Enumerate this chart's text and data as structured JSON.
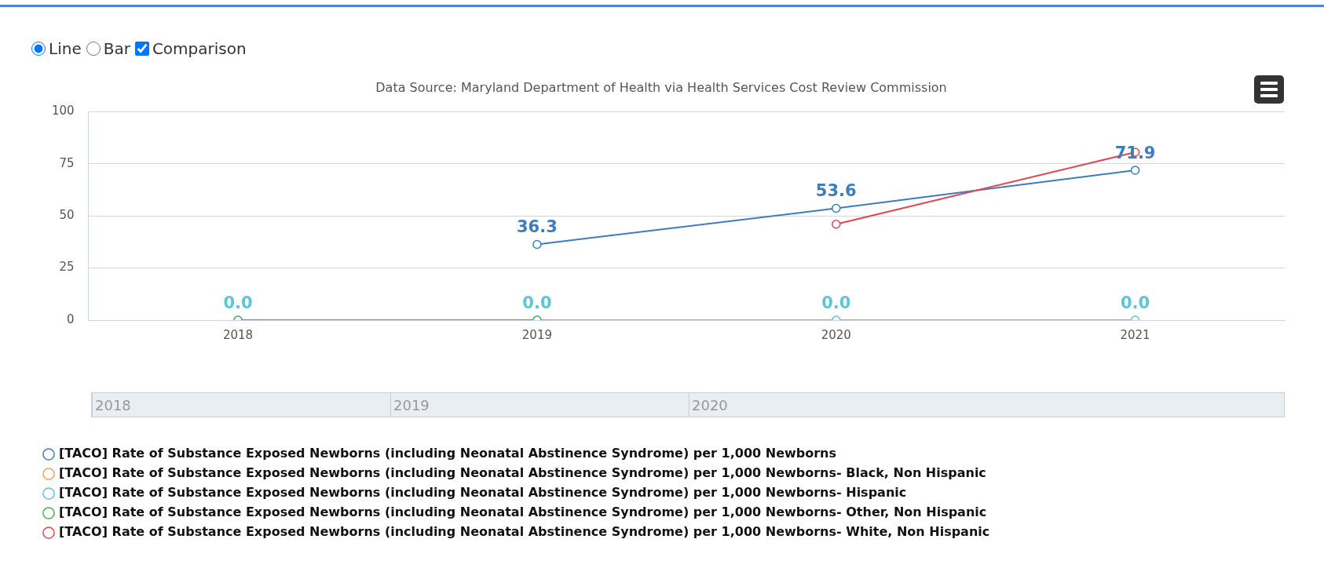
{
  "chart_data": {
    "type": "line",
    "title": "Data Source: Maryland Department of Health via Health Services Cost Review Commission",
    "categories": [
      "2018",
      "2019",
      "2020",
      "2021"
    ],
    "series": [
      {
        "name": "[TACO] Rate of Substance Exposed Newborns (including Neonatal Abstinence Syndrome) per 1,000 Newborns",
        "color": "#3b7dbf",
        "values": [
          null,
          36.3,
          53.6,
          71.9
        ],
        "value_labels": [
          null,
          "36.3",
          "53.6",
          "71.9"
        ]
      },
      {
        "name": "[TACO] Rate of Substance Exposed Newborns (including Neonatal Abstinence Syndrome) per 1,000 Newborns- Black, Non Hispanic",
        "color": "#f5a05a",
        "values": [
          null,
          null,
          null,
          null
        ]
      },
      {
        "name": "[TACO] Rate of Substance Exposed Newborns (including Neonatal Abstinence Syndrome) per 1,000 Newborns- Hispanic",
        "color": "#5bc8d8",
        "values": [
          0,
          0,
          0,
          0
        ],
        "value_labels": [
          "0.0",
          "0.0",
          "0.0",
          "0.0"
        ]
      },
      {
        "name": "[TACO] Rate of Substance Exposed Newborns (including Neonatal Abstinence Syndrome) per 1,000 Newborns- Other, Non Hispanic",
        "color": "#4caf50",
        "values": [
          0,
          0,
          null,
          null
        ]
      },
      {
        "name": "[TACO] Rate of Substance Exposed Newborns (including Neonatal Abstinence Syndrome) per 1,000 Newborns- White, Non Hispanic",
        "color": "#e5434f",
        "values": [
          null,
          null,
          46,
          80.5
        ]
      }
    ],
    "ylim": [
      0,
      100
    ],
    "yticks": [
      0,
      25,
      50,
      75,
      100
    ],
    "grid": "y",
    "legend": "bottom left",
    "marker": "circle",
    "annotations": [
      "Line",
      "Bar",
      "Comparison"
    ]
  }
}
